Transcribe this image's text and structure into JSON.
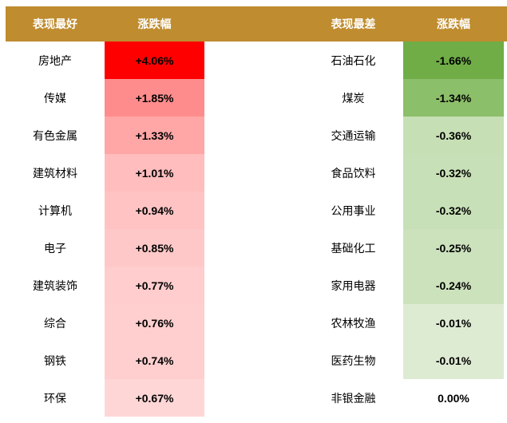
{
  "table": {
    "header": [
      "表现最好",
      "涨跌幅",
      "表现最差",
      "涨跌幅"
    ],
    "rows": [
      {
        "best": "房地产",
        "best_change": "+4.06%",
        "best_color": "#ff0000",
        "worst": "石油石化",
        "worst_change": "-1.66%",
        "worst_color": "#70ad47"
      },
      {
        "best": "传媒",
        "best_change": "+1.85%",
        "best_color": "#ff8c8c",
        "worst": "煤炭",
        "worst_change": "-1.34%",
        "worst_color": "#8cbf69"
      },
      {
        "best": "有色金属",
        "best_change": "+1.33%",
        "best_color": "#ffa6a6",
        "worst": "交通运输",
        "worst_change": "-0.36%",
        "worst_color": "#c6dfb4"
      },
      {
        "best": "建筑材料",
        "best_change": "+1.01%",
        "best_color": "#ffbdbd",
        "worst": "食品饮料",
        "worst_change": "-0.32%",
        "worst_color": "#c8e0b7"
      },
      {
        "best": "计算机",
        "best_change": "+0.94%",
        "best_color": "#ffc3c3",
        "worst": "公用事业",
        "worst_change": "-0.32%",
        "worst_color": "#c8e0b7"
      },
      {
        "best": "电子",
        "best_change": "+0.85%",
        "best_color": "#ffc8c8",
        "worst": "基础化工",
        "worst_change": "-0.25%",
        "worst_color": "#cce2bc"
      },
      {
        "best": "建筑装饰",
        "best_change": "+0.77%",
        "best_color": "#ffcdcd",
        "worst": "家用电器",
        "worst_change": "-0.24%",
        "worst_color": "#cce2bc"
      },
      {
        "best": "综合",
        "best_change": "+0.76%",
        "best_color": "#ffcece",
        "worst": "农林牧渔",
        "worst_change": "-0.01%",
        "worst_color": "#deebd3"
      },
      {
        "best": "钢铁",
        "best_change": "+0.74%",
        "best_color": "#ffcfcf",
        "worst": "医药生物",
        "worst_change": "-0.01%",
        "worst_color": "#deebd3"
      },
      {
        "best": "环保",
        "best_change": "+0.67%",
        "best_color": "#ffd6d6",
        "worst": "非银金融",
        "worst_change": "0.00%",
        "worst_color": "#ffffff"
      }
    ]
  }
}
